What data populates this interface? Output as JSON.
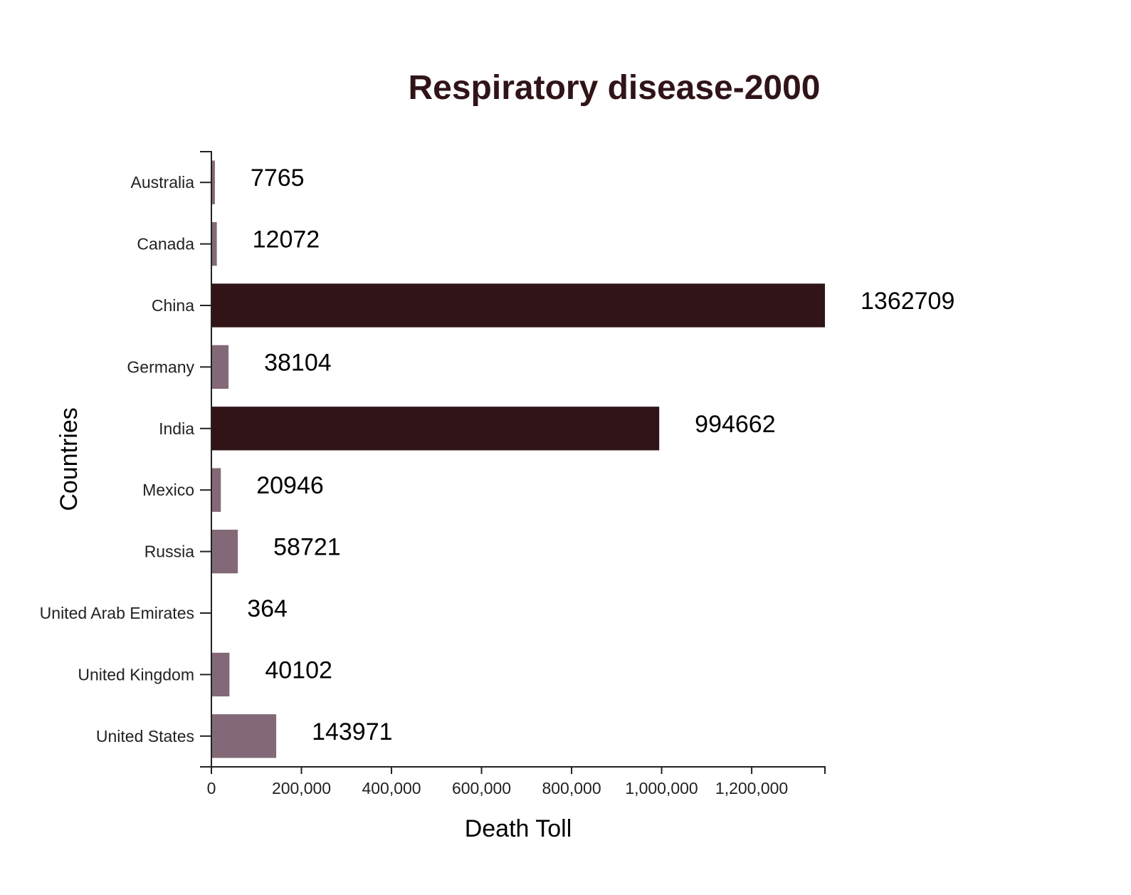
{
  "chart_data": {
    "type": "bar",
    "orientation": "horizontal",
    "title": "Respiratory disease-2000",
    "xlabel": "Death Toll",
    "ylabel": "Countries",
    "categories": [
      "Australia",
      "Canada",
      "China",
      "Germany",
      "India",
      "Mexico",
      "Russia",
      "United Arab Emirates",
      "United Kingdom",
      "United States"
    ],
    "values": [
      7765,
      12072,
      1362709,
      38104,
      994662,
      20946,
      58721,
      364,
      40102,
      143971
    ],
    "xlim": [
      0,
      1362709
    ],
    "xticks": [
      0,
      200000,
      400000,
      600000,
      800000,
      1000000,
      1200000
    ],
    "xtick_labels": [
      "0",
      "200,000",
      "400,000",
      "600,000",
      "800,000",
      "1,000,000",
      "1,200,000"
    ],
    "grid": false,
    "colors": {
      "highlight": "#301418",
      "default": "#836977",
      "title": "#301418"
    },
    "highlight_threshold": 500000
  }
}
